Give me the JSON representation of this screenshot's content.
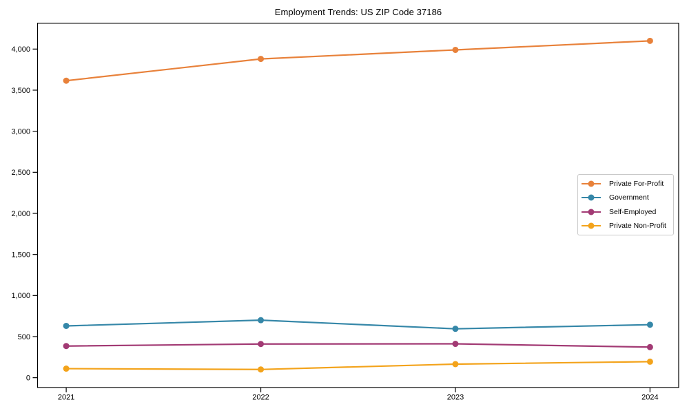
{
  "chart_data": {
    "type": "line",
    "title": "Employment Trends: US ZIP Code 37186",
    "x_labels": [
      "2021",
      "2022",
      "2023",
      "2024"
    ],
    "series": [
      {
        "name": "Private For-Profit",
        "color": "#E8813A",
        "values": [
          3615,
          3880,
          3990,
          4100
        ]
      },
      {
        "name": "Government",
        "color": "#3587A8",
        "values": [
          630,
          700,
          595,
          645
        ]
      },
      {
        "name": "Self-Employed",
        "color": "#A23A74",
        "values": [
          385,
          410,
          412,
          372
        ]
      },
      {
        "name": "Private Non-Profit",
        "color": "#F3A31B",
        "values": [
          110,
          100,
          165,
          195
        ]
      }
    ],
    "ylim": [
      -120,
      4315
    ],
    "yticks": [
      0,
      500,
      1000,
      1500,
      2000,
      2500,
      3000,
      3500,
      4000
    ],
    "ytick_labels": [
      "0",
      "500",
      "1,000",
      "1,500",
      "2,000",
      "2,500",
      "3,000",
      "3,500",
      "4,000"
    ],
    "legend_position": "center right",
    "grid": false,
    "marker": "circle",
    "marker_radius": 4.5,
    "line_width": 2.2,
    "background": "#ffffff",
    "axis_color": "#000000"
  }
}
